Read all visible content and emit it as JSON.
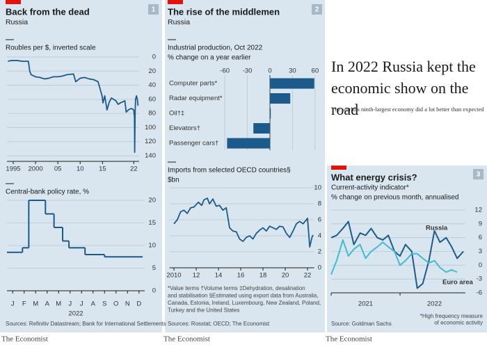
{
  "headline": "In 2022 Russia kept the economic show on the road",
  "subheadline": "The world’s ninth-largest economy did a lot better than expected",
  "brand": "The Economist",
  "panels": [
    {
      "number": "1",
      "title": "Back from the dead",
      "subtitle": "Russia",
      "source": "Sources: Refinitiv Datastream; Bank for International Settlements"
    },
    {
      "number": "2",
      "title": "The rise of the middlemen",
      "subtitle": "Russia",
      "source": "Sources: Rosstat; OECD; The Economist"
    },
    {
      "number": "3",
      "title": "What energy crisis?",
      "source": "Source: Goldman Sachs"
    }
  ],
  "chart_data": [
    {
      "type": "line",
      "title": "Roubles per $, inverted scale",
      "color": "#1b5a8a",
      "grid": true,
      "y_inverted": true,
      "x": [
        1993.8,
        1994.5,
        1996,
        1997,
        1998.4,
        1998.7,
        1999,
        2000,
        2001,
        2002,
        2003,
        2004,
        2005,
        2006,
        2007,
        2008.5,
        2009,
        2010,
        2011,
        2012,
        2013,
        2014,
        2014.9,
        2015.1,
        2015.5,
        2016,
        2016.5,
        2017,
        2018,
        2018.5,
        2019,
        2020,
        2020.3,
        2020.8,
        2021,
        2021.5,
        2022,
        2022.15,
        2022.2,
        2022.3,
        2022.4,
        2022.6,
        2022.8,
        2022.95
      ],
      "values": [
        6,
        5,
        5,
        6,
        6,
        20,
        25,
        28,
        29,
        31,
        30,
        28,
        28,
        27,
        25,
        24,
        35,
        30,
        29,
        31,
        32,
        35,
        55,
        65,
        55,
        75,
        64,
        58,
        62,
        67,
        65,
        62,
        78,
        75,
        74,
        73,
        75,
        85,
        135,
        80,
        60,
        55,
        60,
        69
      ],
      "xlim": [
        1993.6,
        2023.2
      ],
      "ylim": [
        0,
        140
      ],
      "yticks": [
        0,
        20,
        40,
        60,
        80,
        100,
        120,
        140
      ],
      "xticks": [
        1995,
        2000,
        {
          "value": 2005,
          "label": "05"
        },
        {
          "value": 2010,
          "label": "10"
        },
        {
          "value": 2015,
          "label": "15"
        },
        {
          "value": 2022,
          "label": "22"
        }
      ]
    },
    {
      "type": "step",
      "title": "Central-bank policy rate, %",
      "color": "#1b5a8a",
      "grid": true,
      "x": [
        0,
        1.35,
        1.9,
        3.35,
        4.1,
        4.85,
        5.4,
        6.8,
        8.5
      ],
      "values": [
        8.5,
        9.5,
        20,
        17,
        14,
        11,
        9.5,
        8,
        7.5
      ],
      "xlim": [
        0,
        12
      ],
      "ylim": [
        0,
        20
      ],
      "yticks": [
        0,
        5,
        10,
        15,
        20
      ],
      "xticks": [
        {
          "value": 0.5,
          "label": "J"
        },
        {
          "value": 1.5,
          "label": "F"
        },
        {
          "value": 2.5,
          "label": "M"
        },
        {
          "value": 3.5,
          "label": "A"
        },
        {
          "value": 4.5,
          "label": "M"
        },
        {
          "value": 5.5,
          "label": "J"
        },
        {
          "value": 6.5,
          "label": "J"
        },
        {
          "value": 7.5,
          "label": "A"
        },
        {
          "value": 8.5,
          "label": "S"
        },
        {
          "value": 9.5,
          "label": "O"
        },
        {
          "value": 10.5,
          "label": "N"
        },
        {
          "value": 11.5,
          "label": "D"
        }
      ],
      "x_label": "2022"
    },
    {
      "type": "barh",
      "title": "Industrial production, Oct 2022",
      "subtitle": "% change on a year earlier",
      "color": "#1b5a8a",
      "grid": true,
      "categories": [
        "Computer parts*",
        "Radar equipment*",
        "Oil†‡",
        "Elevators†",
        "Passenger cars†"
      ],
      "values": [
        59,
        27,
        1,
        -22,
        -57
      ],
      "xlim": [
        -62,
        62
      ],
      "xticks": [
        -60,
        -30,
        0,
        30,
        60
      ]
    },
    {
      "type": "line",
      "title": "Imports from selected OECD countries§",
      "y_label": "$bn",
      "color": "#1b5a8a",
      "grid": true,
      "x": [
        2010.0,
        2010.3,
        2010.6,
        2010.9,
        2011.2,
        2011.5,
        2011.8,
        2012.2,
        2012.5,
        2012.7,
        2013.0,
        2013.2,
        2013.5,
        2013.8,
        2014.1,
        2014.4,
        2014.7,
        2015.0,
        2015.3,
        2015.6,
        2015.9,
        2016.2,
        2016.5,
        2016.8,
        2017.1,
        2017.4,
        2017.7,
        2018.0,
        2018.3,
        2018.6,
        2018.9,
        2019.2,
        2019.5,
        2019.8,
        2020.1,
        2020.4,
        2020.7,
        2021.0,
        2021.3,
        2021.6,
        2021.9,
        2022.0,
        2022.2,
        2022.4,
        2022.5
      ],
      "values": [
        5.5,
        6,
        7,
        7.2,
        6.8,
        7.5,
        7.6,
        8.2,
        7.8,
        8.5,
        8.7,
        8,
        8.6,
        7.7,
        7.8,
        7.2,
        7.5,
        5,
        4.6,
        4.5,
        3.6,
        3.3,
        3.8,
        4,
        3.6,
        4.3,
        4.7,
        5,
        4.6,
        5.2,
        5,
        4.8,
        5.2,
        5.1,
        4.3,
        3.8,
        4.6,
        5.5,
        5.8,
        5.5,
        6,
        6.2,
        2.6,
        3.8,
        4.1
      ],
      "xlim": [
        2009.6,
        2022.6
      ],
      "ylim": [
        0,
        10
      ],
      "yticks": [
        0,
        2,
        4,
        6,
        8,
        10
      ],
      "xticks": [
        2010,
        {
          "value": 2012,
          "label": "12"
        },
        {
          "value": 2014,
          "label": "14"
        },
        {
          "value": 2016,
          "label": "16"
        },
        {
          "value": 2018,
          "label": "18"
        },
        {
          "value": 2020,
          "label": "20"
        },
        {
          "value": 2022,
          "label": "22"
        }
      ],
      "footnotes": [
        "*Value terms   †Volume terms   ‡Dehydration, desalination",
        "and stabilisation   §Estimated using export data from Australia,",
        "Canada, Estonia, Ireland, Luxembourg, New Zealand, Poland,",
        "Turkey and the United States"
      ]
    },
    {
      "type": "line",
      "title": "Current-activity indicator*",
      "subtitle": "% change on previous month, annualised",
      "grid": true,
      "x": [
        2021,
        2021.08,
        2021.17,
        2021.25,
        2021.33,
        2021.42,
        2021.5,
        2021.58,
        2021.67,
        2021.75,
        2021.83,
        2021.92,
        2022,
        2022.08,
        2022.17,
        2022.25,
        2022.33,
        2022.42,
        2022.5,
        2022.58,
        2022.67,
        2022.75,
        2022.83,
        2022.92
      ],
      "series": [
        {
          "name": "Russia",
          "color": "#1b5a8a",
          "values": [
            6,
            6.5,
            8,
            9.5,
            4.5,
            7,
            6.5,
            8,
            6,
            5.5,
            6.5,
            3,
            2,
            4.5,
            3,
            -5,
            -4,
            1,
            7.5,
            5,
            6,
            4,
            1.5,
            3
          ]
        },
        {
          "name": "Euro area",
          "color": "#3ebcd2",
          "values": [
            -2,
            1,
            5.5,
            2,
            3.5,
            4.5,
            1.5,
            3,
            4,
            5,
            4,
            3,
            0,
            1,
            2.5,
            2.5,
            1.5,
            0.5,
            1,
            -0.5,
            -1.5,
            -1,
            -1.5,
            null
          ]
        }
      ],
      "xlim": [
        2021,
        2022.95
      ],
      "ylim": [
        -6,
        12
      ],
      "yticks": [
        -6,
        -3,
        0,
        3,
        6,
        9,
        12
      ],
      "xticks": [
        2021,
        2022
      ],
      "footnotes": [
        "*High frequency measure",
        "of economic activity"
      ]
    }
  ]
}
